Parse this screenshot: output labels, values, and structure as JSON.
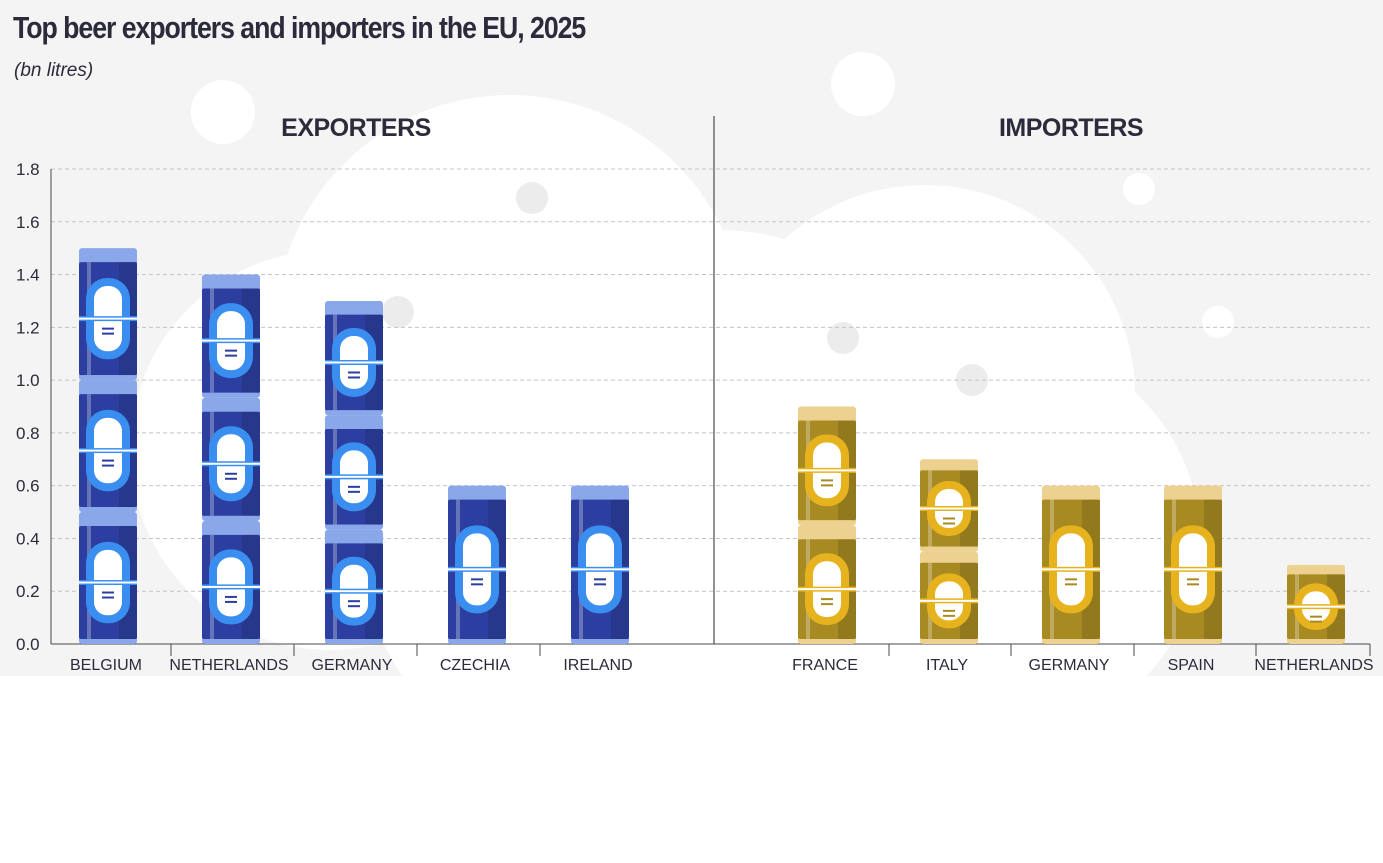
{
  "title": "Top beer exporters and importers in the EU, 2025",
  "unit": "(bn litres)",
  "colors": {
    "exporter_can": "#2c3fa0",
    "exporter_can_light": "#8aa7ea",
    "exporter_accent": "#3a8ef0",
    "importer_can": "#a88a22",
    "importer_can_light": "#ecd190",
    "importer_accent": "#e6b31e",
    "background": "#f4f4f4",
    "text": "#2b2b3b"
  },
  "chart_data": [
    {
      "type": "bar",
      "title": "EXPORTERS",
      "categories": [
        "BELGIUM",
        "NETHERLANDS",
        "GERMANY",
        "CZECHIA",
        "IRELAND"
      ],
      "values": [
        1.5,
        1.4,
        1.3,
        0.6,
        0.6
      ],
      "ylim": [
        0,
        1.8
      ],
      "yticks": [
        "0.0",
        "0.2",
        "0.4",
        "0.6",
        "0.8",
        "1.0",
        "1.2",
        "1.4",
        "1.6",
        "1.8"
      ],
      "grid": true
    },
    {
      "type": "bar",
      "title": "IMPORTERS",
      "categories": [
        "FRANCE",
        "ITALY",
        "GERMANY",
        "SPAIN",
        "NETHERLANDS"
      ],
      "values": [
        0.9,
        0.7,
        0.6,
        0.6,
        0.3
      ],
      "ylim": [
        0,
        1.8
      ],
      "grid": true
    }
  ]
}
